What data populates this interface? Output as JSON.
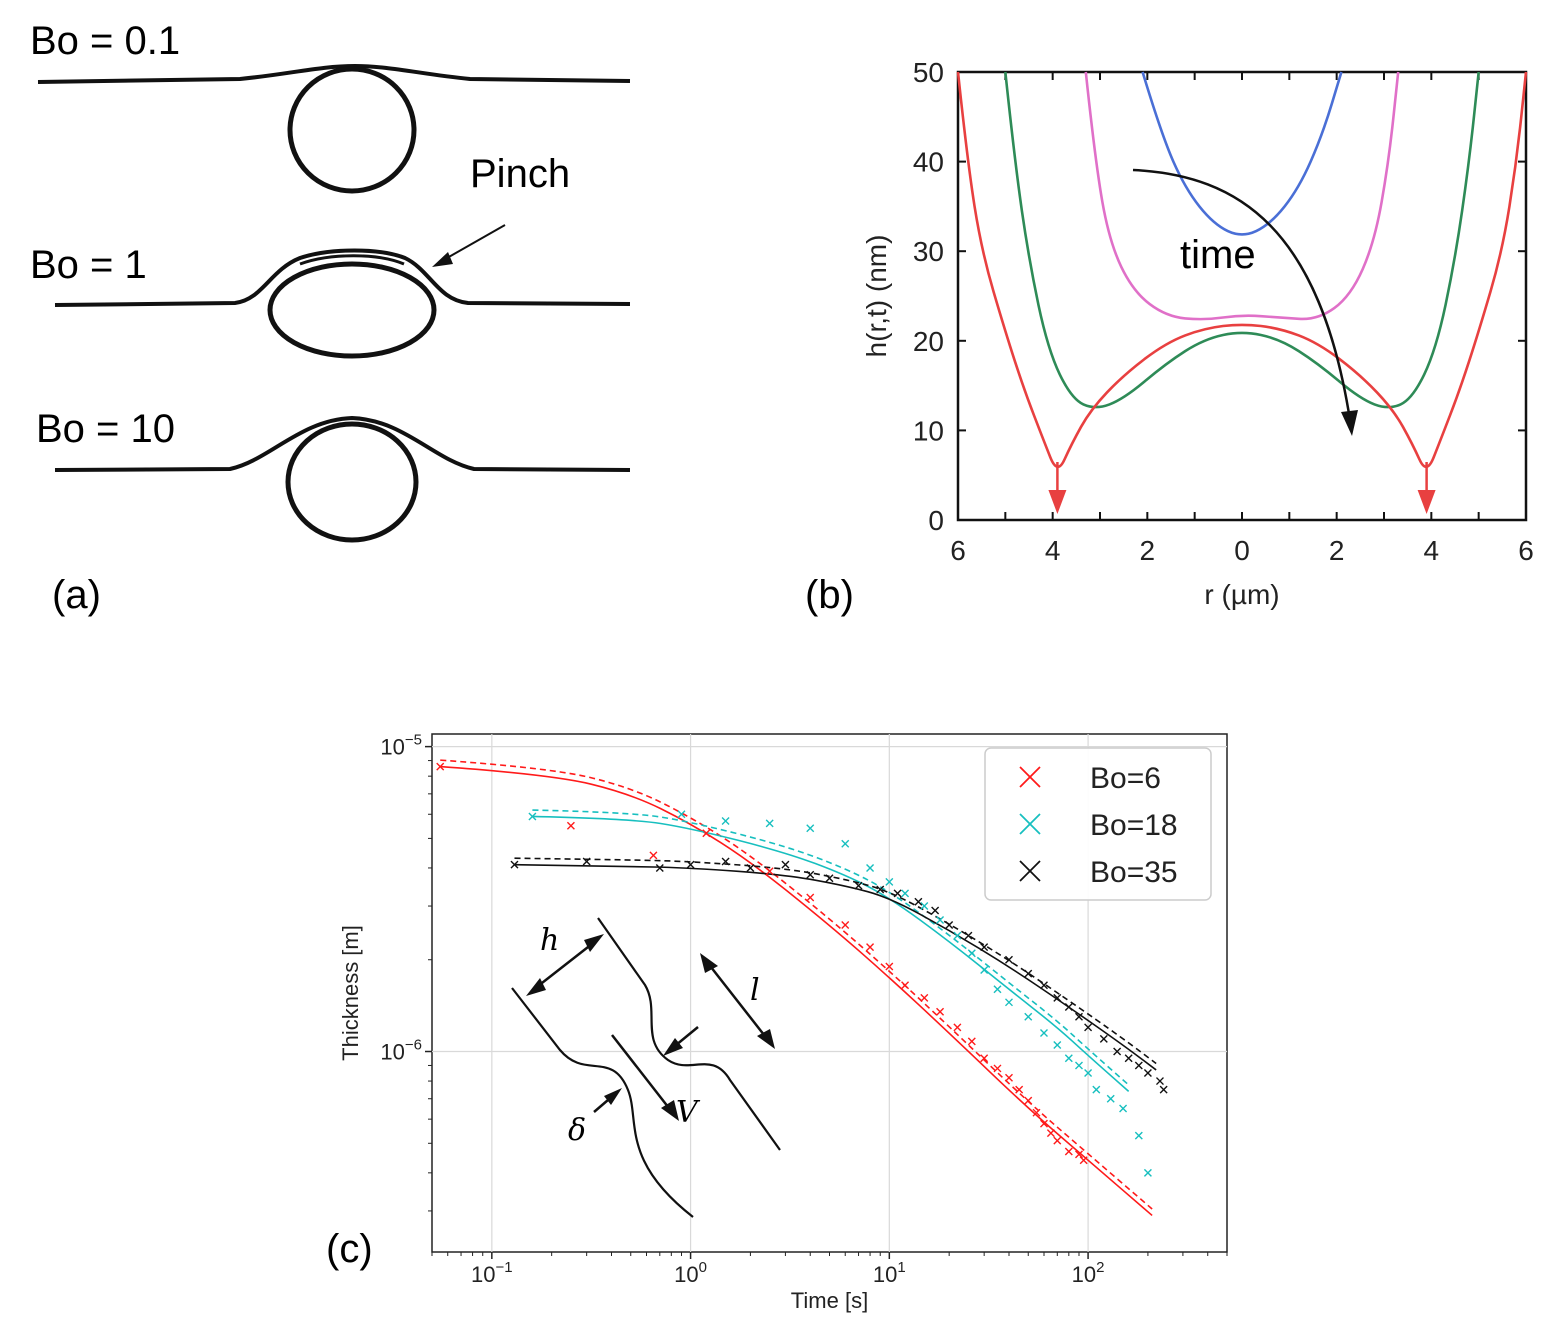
{
  "panel_a": {
    "rows": [
      {
        "label": "Bo = 0.1"
      },
      {
        "label": "Bo = 1"
      },
      {
        "label": "Bo = 10"
      }
    ],
    "annotation": "Pinch",
    "panel_label": "(a)"
  },
  "panel_b": {
    "panel_label": "(b)",
    "annotation": "time"
  },
  "panel_c": {
    "panel_label": "(c)",
    "inset_labels": {
      "h": "h",
      "l": "l",
      "delta": "δ",
      "V": "V"
    }
  },
  "chart_data": [
    {
      "type": "line",
      "xlabel": "r (µm)",
      "ylabel": "h(r,t) (nm)",
      "x_range": [
        -6,
        6
      ],
      "x_tick_labels": [
        "6",
        "4",
        "2",
        "0",
        "2",
        "4",
        "6"
      ],
      "ylim": [
        0,
        50
      ],
      "y_ticks": [
        0,
        10,
        20,
        30,
        40,
        50
      ],
      "series": [
        {
          "color": "#4a6fd6",
          "points": [
            [
              -2.1,
              50
            ],
            [
              -1.7,
              43
            ],
            [
              -1.2,
              37
            ],
            [
              -0.6,
              33
            ],
            [
              0,
              31.5
            ],
            [
              0.6,
              33
            ],
            [
              1.2,
              37
            ],
            [
              1.7,
              43
            ],
            [
              2.1,
              50
            ]
          ]
        },
        {
          "color": "#e070c8",
          "points": [
            [
              -3.3,
              50
            ],
            [
              -3.1,
              40
            ],
            [
              -2.8,
              31
            ],
            [
              -2.3,
              25.5
            ],
            [
              -1.6,
              22.7
            ],
            [
              -0.8,
              22.3
            ],
            [
              0,
              22.9
            ],
            [
              0.8,
              22.6
            ],
            [
              1.6,
              22.3
            ],
            [
              2.3,
              25
            ],
            [
              2.8,
              31
            ],
            [
              3.1,
              40
            ],
            [
              3.3,
              50
            ]
          ]
        },
        {
          "color": "#2e8b57",
          "points": [
            [
              -5,
              50
            ],
            [
              -4.8,
              40
            ],
            [
              -4.5,
              29
            ],
            [
              -4.1,
              19
            ],
            [
              -3.6,
              13.5
            ],
            [
              -3.1,
              12.3
            ],
            [
              -2.5,
              13.5
            ],
            [
              -1.6,
              17.5
            ],
            [
              -0.8,
              20.2
            ],
            [
              0,
              21.1
            ],
            [
              0.8,
              20.2
            ],
            [
              1.6,
              17.5
            ],
            [
              2.5,
              13.5
            ],
            [
              3.1,
              12.3
            ],
            [
              3.6,
              13.5
            ],
            [
              4.1,
              19
            ],
            [
              4.5,
              29
            ],
            [
              4.8,
              40
            ],
            [
              5,
              50
            ]
          ]
        },
        {
          "color": "#e84040",
          "points": [
            [
              -6,
              50
            ],
            [
              -5.8,
              40
            ],
            [
              -5.5,
              30
            ],
            [
              -5,
              21
            ],
            [
              -4.6,
              14.5
            ],
            [
              -4.2,
              9
            ],
            [
              -3.9,
              5
            ],
            [
              -3.6,
              8.5
            ],
            [
              -3.2,
              12.3
            ],
            [
              -2.5,
              16.2
            ],
            [
              -1.6,
              19.8
            ],
            [
              -0.8,
              21.4
            ],
            [
              0,
              21.9
            ],
            [
              0.8,
              21.4
            ],
            [
              1.6,
              19.8
            ],
            [
              2.5,
              16.2
            ],
            [
              3.2,
              12.3
            ],
            [
              3.6,
              8.5
            ],
            [
              3.9,
              5
            ],
            [
              4.2,
              9
            ],
            [
              4.6,
              14.5
            ],
            [
              5,
              21
            ],
            [
              5.5,
              30
            ],
            [
              5.8,
              40
            ],
            [
              6,
              50
            ]
          ]
        }
      ],
      "markers": [
        {
          "x": -3.9,
          "color": "#e84040"
        },
        {
          "x": 3.9,
          "color": "#e84040"
        }
      ]
    },
    {
      "type": "scatter",
      "xlabel": "Time [s]",
      "ylabel": "Thickness [m]",
      "x_scale": "log",
      "y_scale": "log",
      "xlim": [
        0.05,
        500
      ],
      "ylim": [
        2.2e-07,
        1.1e-05
      ],
      "x_ticks": [
        0.1,
        1,
        10,
        100
      ],
      "x_tick_labels": [
        {
          "base": "10",
          "exp": "−1"
        },
        {
          "base": "10",
          "exp": "0"
        },
        {
          "base": "10",
          "exp": "1"
        },
        {
          "base": "10",
          "exp": "2"
        }
      ],
      "y_ticks": [
        1e-06,
        1e-05
      ],
      "y_tick_labels": [
        {
          "base": "10",
          "exp": "−6"
        },
        {
          "base": "10",
          "exp": "−5"
        }
      ],
      "grid": true,
      "legend_position": "top-right",
      "series": [
        {
          "name": "Bo=6",
          "color": "#ff1a1a",
          "points": [
            [
              0.055,
              8.6e-06
            ],
            [
              0.25,
              5.5e-06
            ],
            [
              0.65,
              4.4e-06
            ],
            [
              1.2,
              5.2e-06
            ],
            [
              2.5,
              3.9e-06
            ],
            [
              4,
              3.2e-06
            ],
            [
              6,
              2.6e-06
            ],
            [
              8,
              2.2e-06
            ],
            [
              10,
              1.9e-06
            ],
            [
              12,
              1.65e-06
            ],
            [
              15,
              1.5e-06
            ],
            [
              18,
              1.35e-06
            ],
            [
              22,
              1.2e-06
            ],
            [
              26,
              1.08e-06
            ],
            [
              30,
              9.5e-07
            ],
            [
              35,
              8.8e-07
            ],
            [
              40,
              8.2e-07
            ],
            [
              45,
              7.5e-07
            ],
            [
              50,
              6.9e-07
            ],
            [
              55,
              6.3e-07
            ],
            [
              60,
              5.8e-07
            ],
            [
              65,
              5.4e-07
            ],
            [
              70,
              5.1e-07
            ],
            [
              80,
              4.7e-07
            ],
            [
              90,
              4.6e-07
            ],
            [
              95,
              4.4e-07
            ]
          ],
          "fit": [
            [
              0.055,
              8.6e-06
            ],
            [
              0.2,
              8.1e-06
            ],
            [
              0.5,
              7e-06
            ],
            [
              1,
              5.6e-06
            ],
            [
              2,
              4.2e-06
            ],
            [
              5,
              2.6e-06
            ],
            [
              10,
              1.75e-06
            ],
            [
              20,
              1.15e-06
            ],
            [
              50,
              6.5e-07
            ],
            [
              100,
              4.4e-07
            ],
            [
              210,
              2.9e-07
            ]
          ]
        },
        {
          "name": "Bo=18",
          "color": "#17bfbf",
          "points": [
            [
              0.16,
              5.9e-06
            ],
            [
              0.9,
              6e-06
            ],
            [
              1.5,
              5.7e-06
            ],
            [
              2.5,
              5.6e-06
            ],
            [
              4,
              5.4e-06
            ],
            [
              6,
              4.8e-06
            ],
            [
              8,
              4e-06
            ],
            [
              10,
              3.6e-06
            ],
            [
              12,
              3.3e-06
            ],
            [
              15,
              3e-06
            ],
            [
              18,
              2.7e-06
            ],
            [
              22,
              2.4e-06
            ],
            [
              26,
              2.1e-06
            ],
            [
              30,
              1.85e-06
            ],
            [
              35,
              1.6e-06
            ],
            [
              40,
              1.45e-06
            ],
            [
              50,
              1.3e-06
            ],
            [
              60,
              1.15e-06
            ],
            [
              70,
              1.05e-06
            ],
            [
              80,
              9.5e-07
            ],
            [
              90,
              9e-07
            ],
            [
              100,
              8.5e-07
            ],
            [
              110,
              7.5e-07
            ],
            [
              130,
              7e-07
            ],
            [
              150,
              6.5e-07
            ],
            [
              180,
              5.3e-07
            ],
            [
              200,
              4e-07
            ]
          ],
          "fit": [
            [
              0.16,
              5.9e-06
            ],
            [
              0.5,
              5.8e-06
            ],
            [
              1,
              5.4e-06
            ],
            [
              3,
              4.5e-06
            ],
            [
              6,
              3.8e-06
            ],
            [
              10,
              3.2e-06
            ],
            [
              20,
              2.3e-06
            ],
            [
              40,
              1.6e-06
            ],
            [
              70,
              1.2e-06
            ],
            [
              100,
              9.7e-07
            ],
            [
              160,
              7.4e-07
            ]
          ]
        },
        {
          "name": "Bo=35",
          "color": "#111111",
          "points": [
            [
              0.13,
              4.1e-06
            ],
            [
              0.3,
              4.2e-06
            ],
            [
              0.7,
              4e-06
            ],
            [
              1,
              4.1e-06
            ],
            [
              1.5,
              4.2e-06
            ],
            [
              2,
              4e-06
            ],
            [
              3,
              4.1e-06
            ],
            [
              4,
              3.8e-06
            ],
            [
              5,
              3.7e-06
            ],
            [
              7,
              3.5e-06
            ],
            [
              9,
              3.4e-06
            ],
            [
              11,
              3.3e-06
            ],
            [
              14,
              3.1e-06
            ],
            [
              17,
              2.9e-06
            ],
            [
              20,
              2.6e-06
            ],
            [
              25,
              2.4e-06
            ],
            [
              30,
              2.2e-06
            ],
            [
              40,
              2e-06
            ],
            [
              50,
              1.8e-06
            ],
            [
              60,
              1.65e-06
            ],
            [
              70,
              1.5e-06
            ],
            [
              80,
              1.4e-06
            ],
            [
              90,
              1.3e-06
            ],
            [
              100,
              1.2e-06
            ],
            [
              120,
              1.1e-06
            ],
            [
              140,
              1e-06
            ],
            [
              160,
              9.5e-07
            ],
            [
              180,
              9e-07
            ],
            [
              200,
              8.5e-07
            ],
            [
              230,
              8e-07
            ],
            [
              240,
              7.5e-07
            ]
          ],
          "fit": [
            [
              0.13,
              4.1e-06
            ],
            [
              0.5,
              4.05e-06
            ],
            [
              1,
              4e-06
            ],
            [
              3,
              3.8e-06
            ],
            [
              6,
              3.5e-06
            ],
            [
              10,
              3.2e-06
            ],
            [
              20,
              2.5e-06
            ],
            [
              40,
              1.9e-06
            ],
            [
              80,
              1.4e-06
            ],
            [
              150,
              1.05e-06
            ],
            [
              220,
              8.7e-07
            ]
          ]
        }
      ]
    }
  ]
}
